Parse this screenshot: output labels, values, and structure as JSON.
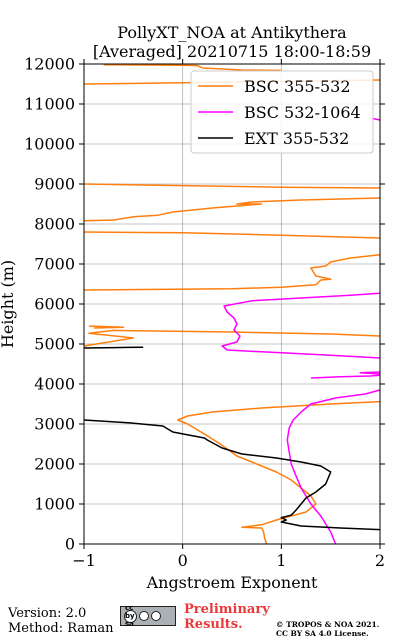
{
  "chart_data": {
    "type": "line",
    "title_line1": "PollyXT_NOA at Antikythera",
    "title_line2": "[Averaged] 20210715 18:00-18:59",
    "xlabel": "Angstroem Exponent",
    "ylabel": "Height (m)",
    "xlim": [
      -1,
      2
    ],
    "ylim": [
      0,
      12000
    ],
    "xticks": [
      -1,
      0,
      1,
      2
    ],
    "yticks": [
      0,
      1000,
      2000,
      3000,
      4000,
      5000,
      6000,
      7000,
      8000,
      9000,
      10000,
      11000,
      12000
    ],
    "grid": true,
    "legend_position": "top-right",
    "series": [
      {
        "name": "BSC 355-532",
        "color": "#ff7f0e",
        "segments": [
          [
            [
              0.85,
              0
            ],
            [
              0.83,
              150
            ],
            [
              0.82,
              300
            ],
            [
              0.8,
              400
            ],
            [
              0.6,
              420
            ],
            [
              0.8,
              480
            ],
            [
              0.95,
              600
            ],
            [
              1.25,
              800
            ],
            [
              1.35,
              1000
            ],
            [
              1.3,
              1200
            ],
            [
              1.2,
              1400
            ],
            [
              1.1,
              1600
            ],
            [
              0.95,
              1800
            ],
            [
              0.75,
              2000
            ],
            [
              0.55,
              2200
            ],
            [
              0.38,
              2500
            ],
            [
              0.22,
              2750
            ],
            [
              0.05,
              3000
            ],
            [
              -0.05,
              3100
            ],
            [
              0.05,
              3200
            ],
            [
              0.3,
              3300
            ],
            [
              0.8,
              3400
            ],
            [
              1.5,
              3500
            ],
            [
              2.0,
              3560
            ]
          ],
          [
            [
              -1.0,
              4950
            ],
            [
              -0.5,
              5150
            ],
            [
              -0.95,
              5270
            ],
            [
              -0.7,
              5340
            ],
            [
              0.5,
              5300
            ],
            [
              1.5,
              5250
            ],
            [
              2.0,
              5200
            ]
          ],
          [
            [
              -0.9,
              5400
            ],
            [
              -0.6,
              5420
            ],
            [
              -0.95,
              5450
            ]
          ],
          [
            [
              -1.0,
              6350
            ],
            [
              0.5,
              6380
            ],
            [
              1.0,
              6420
            ],
            [
              1.35,
              6480
            ],
            [
              1.4,
              6600
            ],
            [
              1.5,
              6620
            ],
            [
              1.35,
              6700
            ],
            [
              1.3,
              6900
            ],
            [
              1.45,
              6950
            ],
            [
              1.5,
              7050
            ],
            [
              1.7,
              7150
            ],
            [
              2.0,
              7230
            ]
          ],
          [
            [
              -1.0,
              7800
            ],
            [
              0.0,
              7780
            ],
            [
              1.0,
              7720
            ],
            [
              2.0,
              7650
            ]
          ],
          [
            [
              -1.0,
              8080
            ],
            [
              -0.7,
              8100
            ],
            [
              -0.5,
              8180
            ],
            [
              -0.25,
              8220
            ],
            [
              -0.1,
              8300
            ],
            [
              0.3,
              8400
            ],
            [
              0.8,
              8500
            ],
            [
              0.55,
              8500
            ],
            [
              0.7,
              8550
            ],
            [
              1.2,
              8600
            ],
            [
              2.0,
              8650
            ]
          ],
          [
            [
              -1.0,
              9000
            ],
            [
              0.0,
              8960
            ],
            [
              1.0,
              8920
            ],
            [
              2.0,
              8900
            ]
          ],
          [
            [
              -1.0,
              11500
            ],
            [
              0.0,
              11530
            ],
            [
              1.0,
              11570
            ],
            [
              2.0,
              11600
            ]
          ],
          [
            [
              -0.8,
              11980
            ],
            [
              0.0,
              11970
            ],
            [
              0.15,
              11960
            ],
            [
              0.2,
              11900
            ],
            [
              0.6,
              11850
            ],
            [
              1.0,
              11840
            ]
          ]
        ]
      },
      {
        "name": "BSC 532-1064",
        "color": "#ff00ff",
        "segments": [
          [
            [
              1.55,
              0
            ],
            [
              1.5,
              300
            ],
            [
              1.4,
              700
            ],
            [
              1.3,
              1000
            ],
            [
              1.25,
              1200
            ],
            [
              1.2,
              1400
            ],
            [
              1.15,
              1700
            ],
            [
              1.1,
              2000
            ],
            [
              1.08,
              2300
            ],
            [
              1.06,
              2600
            ],
            [
              1.08,
              2900
            ],
            [
              1.12,
              3100
            ],
            [
              1.2,
              3300
            ],
            [
              1.3,
              3500
            ],
            [
              1.55,
              3650
            ],
            [
              1.85,
              3750
            ],
            [
              2.0,
              3850
            ]
          ],
          [
            [
              1.3,
              4150
            ],
            [
              1.6,
              4180
            ],
            [
              1.9,
              4200
            ],
            [
              2.0,
              4220
            ]
          ],
          [
            [
              2.0,
              4250
            ],
            [
              1.8,
              4280
            ],
            [
              2.0,
              4300
            ]
          ],
          [
            [
              2.0,
              4650
            ],
            [
              1.5,
              4720
            ],
            [
              1.0,
              4780
            ],
            [
              0.45,
              4850
            ],
            [
              0.4,
              4950
            ],
            [
              0.55,
              5050
            ],
            [
              0.58,
              5200
            ],
            [
              0.52,
              5350
            ],
            [
              0.55,
              5500
            ],
            [
              0.52,
              5650
            ],
            [
              0.45,
              5800
            ],
            [
              0.42,
              5950
            ],
            [
              0.7,
              6080
            ],
            [
              1.2,
              6150
            ],
            [
              1.7,
              6220
            ],
            [
              2.0,
              6270
            ]
          ],
          [
            [
              1.9,
              10650
            ],
            [
              2.0,
              10600
            ]
          ]
        ]
      },
      {
        "name": "EXT 355-532",
        "color": "#000000",
        "segments": [
          [
            [
              2.0,
              360
            ],
            [
              1.6,
              400
            ],
            [
              1.2,
              450
            ],
            [
              1.0,
              550
            ],
            [
              1.05,
              600
            ],
            [
              1.0,
              660
            ],
            [
              1.1,
              720
            ],
            [
              1.15,
              850
            ],
            [
              1.2,
              1000
            ],
            [
              1.25,
              1150
            ],
            [
              1.35,
              1300
            ],
            [
              1.45,
              1500
            ],
            [
              1.5,
              1800
            ],
            [
              1.4,
              1950
            ],
            [
              1.2,
              2050
            ],
            [
              0.95,
              2150
            ],
            [
              0.6,
              2250
            ],
            [
              0.4,
              2400
            ],
            [
              0.25,
              2600
            ],
            [
              0.22,
              2650
            ],
            [
              -0.1,
              2800
            ],
            [
              -0.2,
              2950
            ],
            [
              -0.55,
              3030
            ],
            [
              -1.0,
              3100
            ]
          ],
          [
            [
              -1.0,
              4900
            ],
            [
              -0.7,
              4910
            ],
            [
              -0.4,
              4920
            ]
          ]
        ]
      }
    ]
  },
  "footer": {
    "version": "Version: 2.0",
    "method": "Method: Raman",
    "preliminary_line1": "Preliminary",
    "preliminary_line2": "Results.",
    "copyright_line1": "© TROPOS & NOA 2021.",
    "copyright_line2": "CC BY SA 4.0 License.",
    "license_badge": "cc by sa"
  }
}
